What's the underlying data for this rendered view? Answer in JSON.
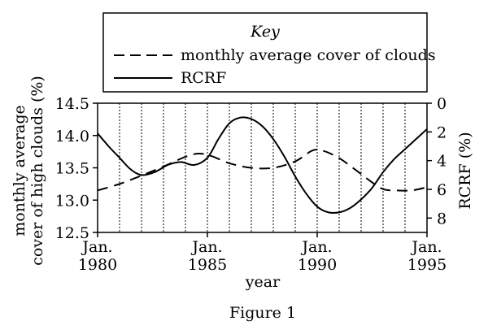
{
  "chart_data": {
    "type": "line",
    "title": "",
    "caption": "Figure 1",
    "legend": {
      "title": "Key",
      "placement": "top-center",
      "entries": [
        {
          "label": "monthly average cover of clouds",
          "style": "dashed"
        },
        {
          "label": "RCRF",
          "style": "solid"
        }
      ]
    },
    "xlabel": "year",
    "xlim": [
      1980,
      1995
    ],
    "x_ticks": [
      {
        "value": 1980,
        "line1": "Jan.",
        "line2": "1980"
      },
      {
        "value": 1985,
        "line1": "Jan.",
        "line2": "1985"
      },
      {
        "value": 1990,
        "line1": "Jan.",
        "line2": "1990"
      },
      {
        "value": 1995,
        "line1": "Jan.",
        "line2": "1995"
      }
    ],
    "vertical_gridlines": [
      1981,
      1982,
      1983,
      1984,
      1985,
      1986,
      1987,
      1988,
      1989,
      1990,
      1991,
      1992,
      1993,
      1994
    ],
    "left_axis": {
      "label_line1": "monthly average",
      "label_line2": "cover of high clouds (%)",
      "ylim": [
        12.5,
        14.5
      ],
      "ticks": [
        "12.5",
        "13.0",
        "13.5",
        "14.0",
        "14.5"
      ]
    },
    "right_axis": {
      "label": "RCRF (%)",
      "ylim": [
        0,
        9
      ],
      "inverted": true,
      "ticks": [
        "0",
        "2",
        "4",
        "6",
        "8"
      ]
    },
    "series": [
      {
        "name": "monthly average cover of clouds",
        "axis": "left",
        "style": "dashed",
        "x": [
          1980,
          1981,
          1982,
          1983,
          1984,
          1984.6,
          1985.2,
          1986,
          1987,
          1988,
          1989,
          1989.8,
          1990.3,
          1991,
          1991.7,
          1992.4,
          1993,
          1993.6,
          1994.3,
          1995
        ],
        "y": [
          13.15,
          13.25,
          13.38,
          13.52,
          13.67,
          13.72,
          13.68,
          13.57,
          13.5,
          13.5,
          13.6,
          13.77,
          13.76,
          13.65,
          13.48,
          13.3,
          13.17,
          13.15,
          13.15,
          13.2
        ]
      },
      {
        "name": "RCRF",
        "axis": "right",
        "style": "solid",
        "x": [
          1980,
          1980.5,
          1981,
          1981.5,
          1982,
          1982.6,
          1983.2,
          1983.8,
          1984.4,
          1985,
          1985.5,
          1986,
          1986.5,
          1987,
          1987.5,
          1988,
          1988.5,
          1989,
          1989.5,
          1990,
          1990.5,
          1991,
          1991.5,
          1992,
          1992.5,
          1993,
          1993.5,
          1994,
          1994.5,
          1995
        ],
        "y": [
          2.1,
          3.0,
          3.8,
          4.6,
          5.0,
          4.8,
          4.3,
          4.1,
          4.3,
          3.8,
          2.5,
          1.4,
          1.0,
          1.1,
          1.6,
          2.5,
          3.7,
          5.1,
          6.3,
          7.2,
          7.6,
          7.6,
          7.3,
          6.7,
          5.9,
          4.8,
          3.9,
          3.2,
          2.5,
          1.8
        ]
      }
    ]
  }
}
